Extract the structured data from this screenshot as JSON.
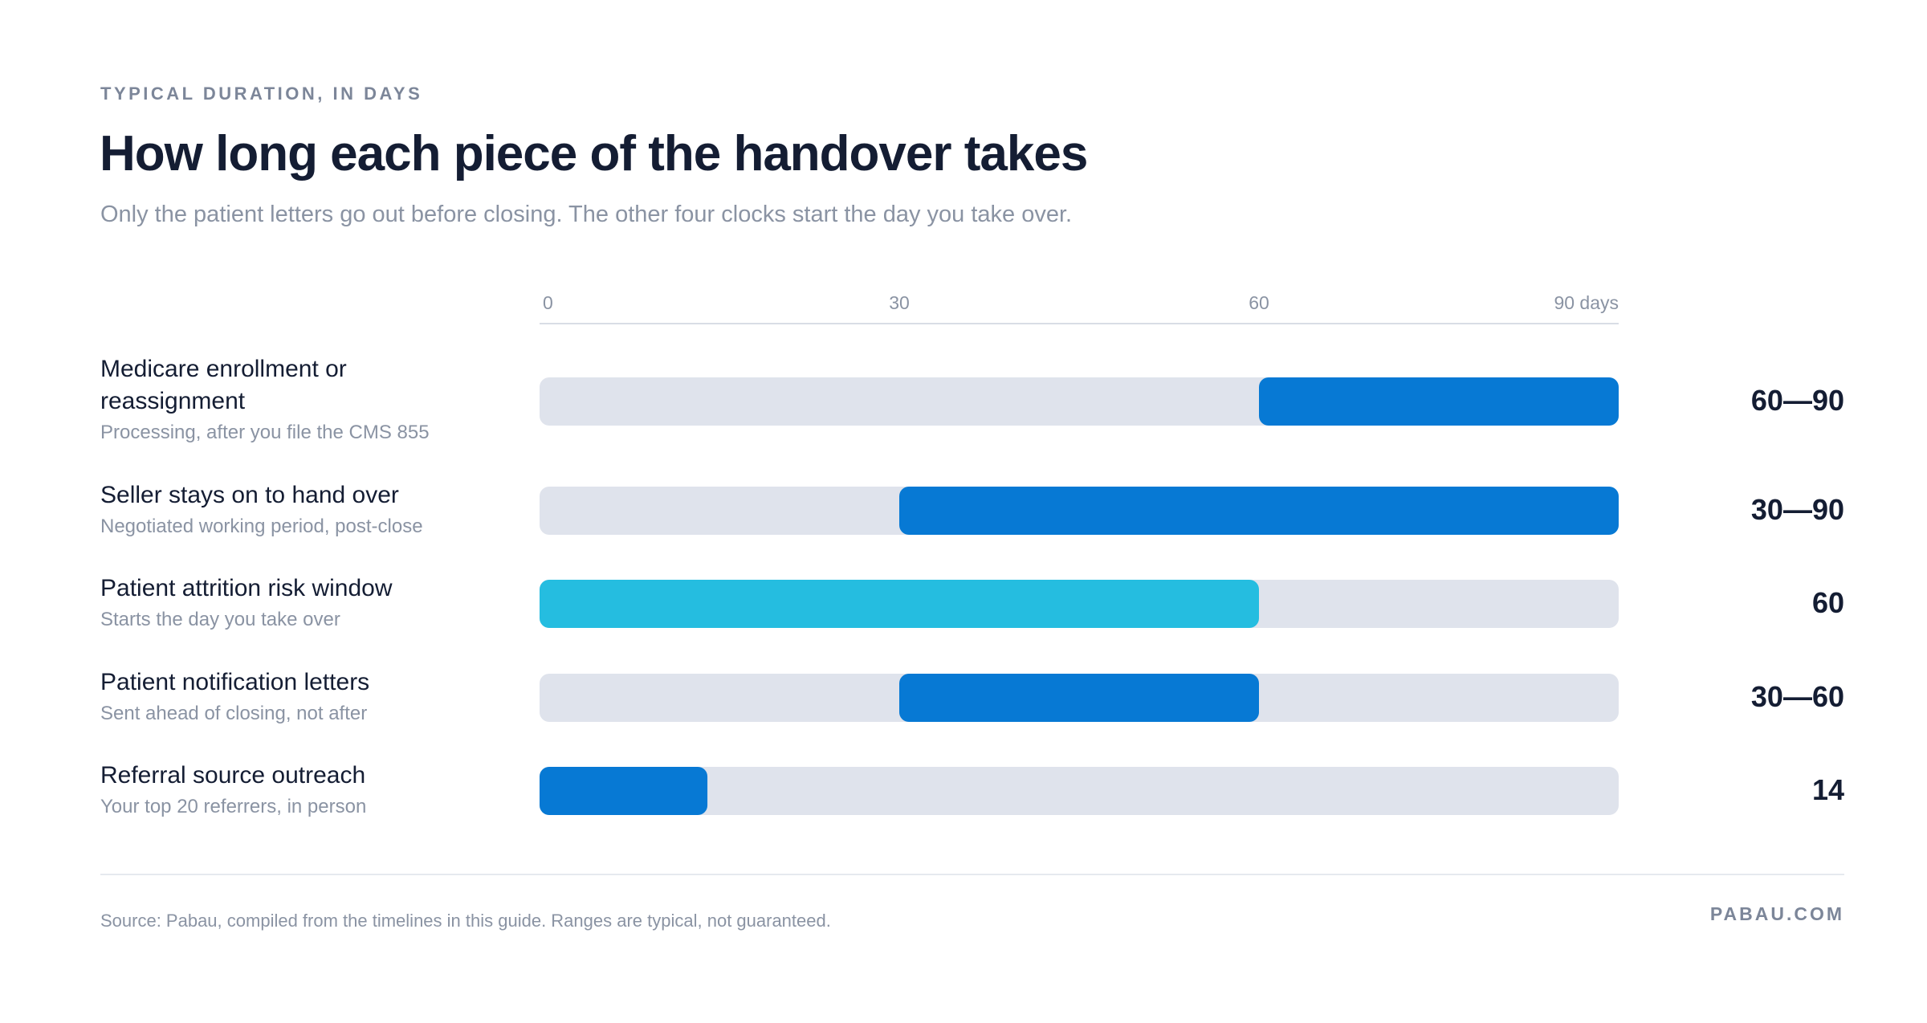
{
  "header": {
    "eyebrow": "TYPICAL DURATION, IN DAYS",
    "title": "How long each piece of the handover takes",
    "subtitle": "Only the patient letters go out before closing. The other four clocks start the day you take over."
  },
  "chart_data": {
    "type": "bar",
    "orientation": "horizontal-range",
    "xlim": [
      0,
      90
    ],
    "ticks": [
      {
        "value": 0,
        "label": "0"
      },
      {
        "value": 30,
        "label": "30"
      },
      {
        "value": 60,
        "label": "60"
      },
      {
        "value": 90,
        "label": "90 days"
      }
    ],
    "grid": false,
    "rows": [
      {
        "label": "Medicare enrollment or reassignment",
        "sublabel": "Processing, after you file the CMS 855",
        "start": 60,
        "end": 90,
        "value_label": "60—90",
        "color": "#0779d4"
      },
      {
        "label": "Seller stays on to hand over",
        "sublabel": "Negotiated working period, post-close",
        "start": 30,
        "end": 90,
        "value_label": "30—90",
        "color": "#0779d4"
      },
      {
        "label": "Patient attrition risk window",
        "sublabel": "Starts the day you take over",
        "start": 0,
        "end": 60,
        "value_label": "60",
        "color": "#25bde0"
      },
      {
        "label": "Patient notification letters",
        "sublabel": "Sent ahead of closing, not after",
        "start": 30,
        "end": 60,
        "value_label": "30—60",
        "color": "#0779d4"
      },
      {
        "label": "Referral source outreach",
        "sublabel": "Your top 20 referrers, in person",
        "start": 0,
        "end": 14,
        "value_label": "14",
        "color": "#0779d4"
      }
    ]
  },
  "colors": {
    "track": "#dfe3ec",
    "bar": "#0779d4",
    "highlight": "#25bde0",
    "axis_line": "#d9dde5",
    "tick_text": "#8a93a3"
  },
  "footer": {
    "source": "Source: Pabau, compiled from the timelines in this guide. Ranges are typical, not guaranteed.",
    "brand": "PABAU.COM"
  }
}
